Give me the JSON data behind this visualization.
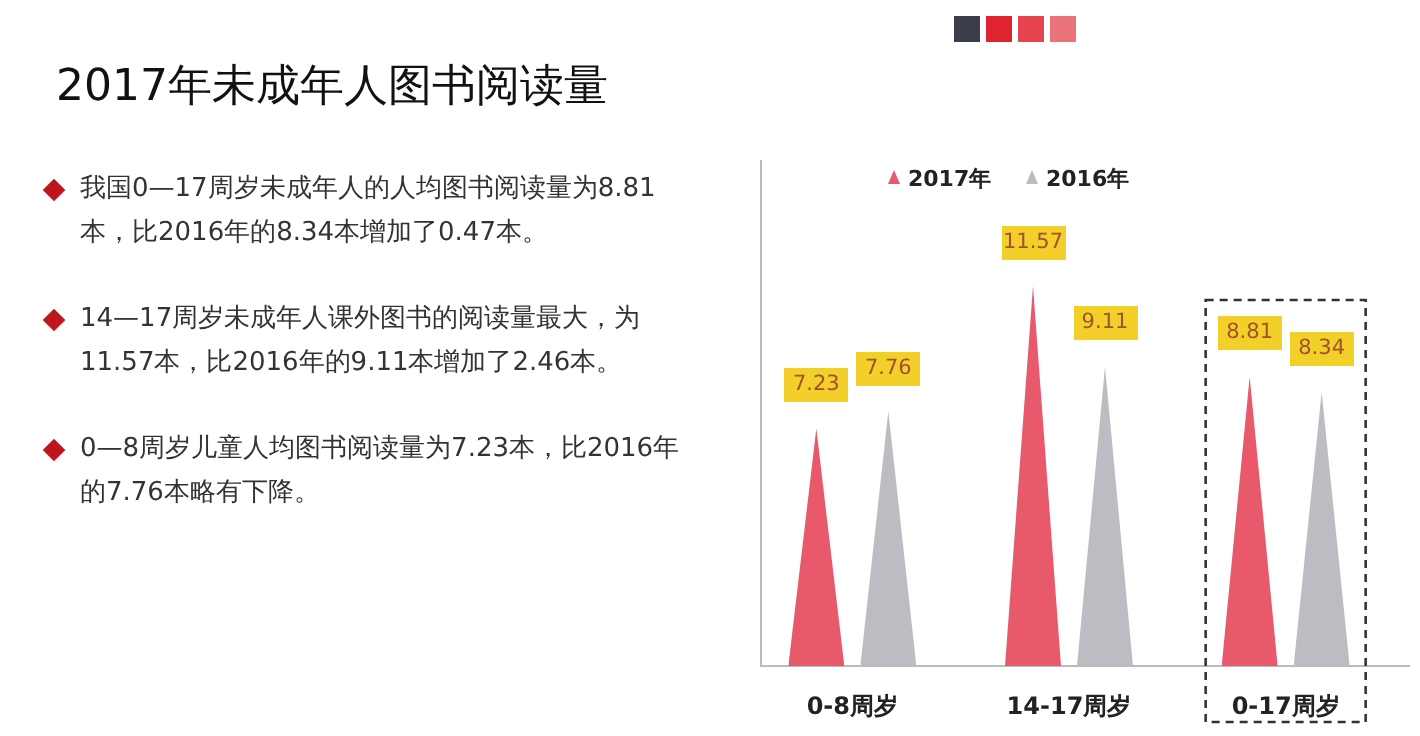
{
  "chart_data": {
    "type": "bar",
    "title": "2017年未成年人图书阅读量",
    "categories": [
      "0-8周岁",
      "14-17周岁",
      "0-17周岁"
    ],
    "series": [
      {
        "name": "2017年",
        "color": "#e8596b",
        "values": [
          7.23,
          11.57,
          8.81
        ]
      },
      {
        "name": "2016年",
        "color": "#bcbcc2",
        "values": [
          7.76,
          9.11,
          8.34
        ]
      }
    ],
    "data_labels": true,
    "legend": "top",
    "marker": "triangle",
    "annotations": [
      "我国0—17周岁未成年人的人均图书阅读量为8.81本，比2016年的8.34本增加了0.47本。",
      "14—17周岁未成年人课外图书的阅读量最大，为11.57本，比2016年的9.11本增加了2.46本。",
      "0—8周岁儿童人均图书阅读量为7.23本，比2016年的7.76本略有下降。"
    ]
  }
}
